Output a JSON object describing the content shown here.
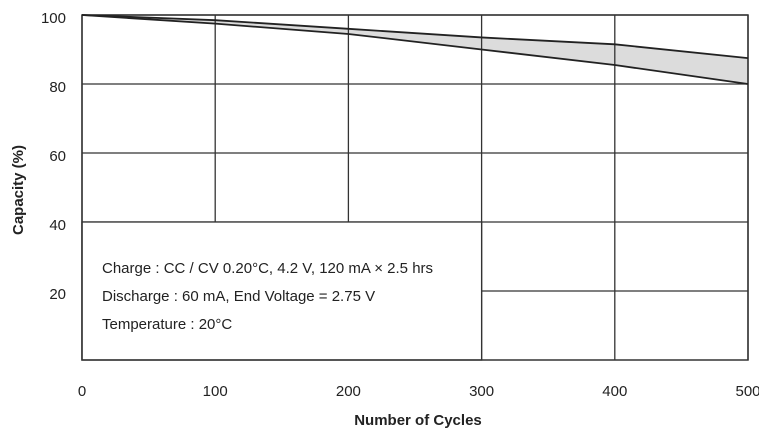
{
  "chart_data": {
    "type": "line",
    "x_label": "Number of Cycles",
    "y_label": "Capacity (%)",
    "annotations": [
      "Charge : CC / CV 0.20°C, 4.2 V, 120 mA × 2.5 hrs",
      "Discharge : 60 mA, End Voltage = 2.75 V",
      "Temperature : 20°C"
    ],
    "x": [
      0,
      100,
      200,
      300,
      400,
      500
    ],
    "series": [
      {
        "color": "#222222",
        "values": [
          100,
          98.5,
          96,
          93.5,
          91.5,
          87.5
        ]
      },
      {
        "color": "#222222",
        "values": [
          100,
          97.5,
          94.5,
          90,
          85.5,
          80
        ]
      }
    ],
    "band_color": "#dcdcdc",
    "xlim": [
      0,
      500
    ],
    "xticks": [
      0,
      100,
      200,
      300,
      400,
      500
    ],
    "ylim": [
      0,
      100
    ],
    "yticks": [
      20,
      40,
      60,
      80,
      100
    ],
    "grid": true
  }
}
